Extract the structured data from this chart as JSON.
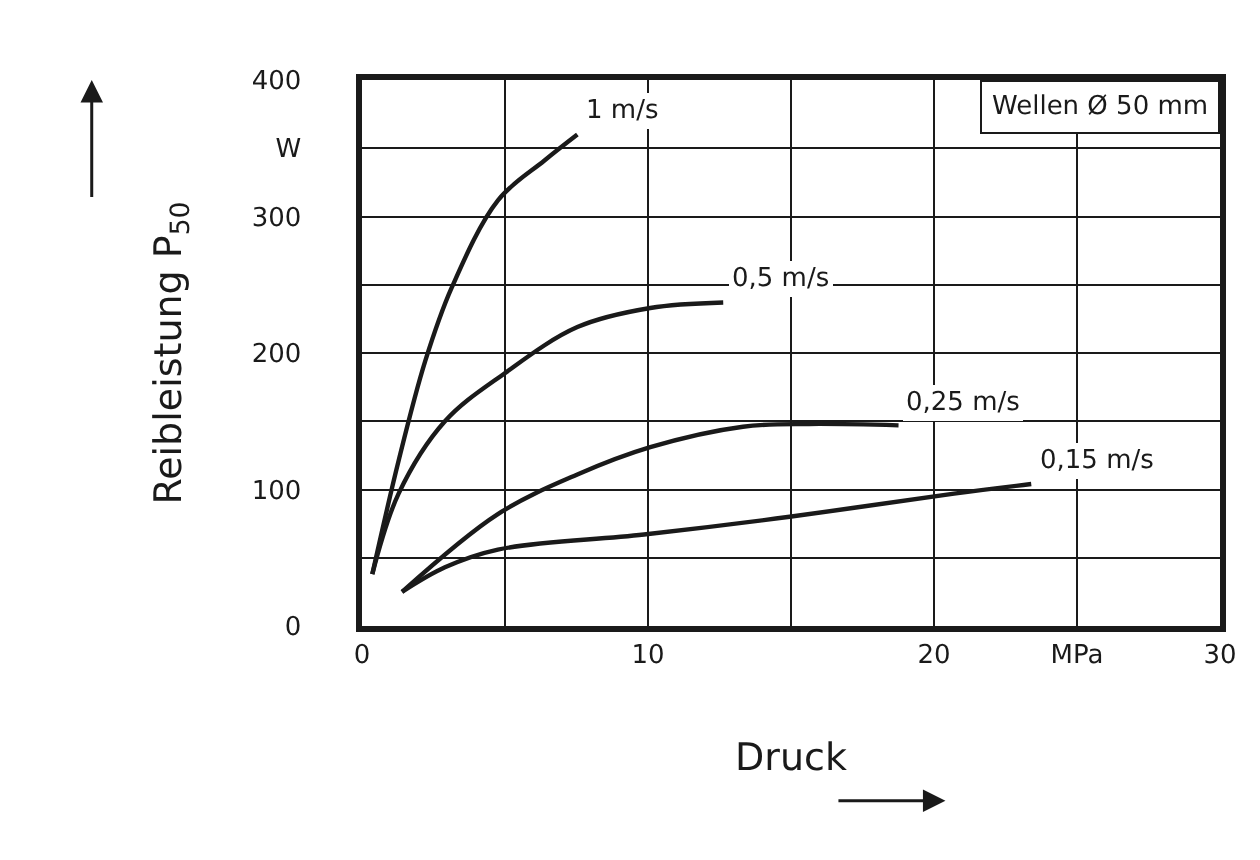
{
  "chart_data": {
    "type": "line",
    "xlabel": "Druck",
    "ylabel": "Reibleistung P$_{50}$",
    "annotations": [
      "Wellen Ø 50 mm"
    ],
    "xlim": [
      0,
      30
    ],
    "ylim": [
      0,
      400
    ],
    "xticks": [
      0,
      {
        "value": 5,
        "label": null
      },
      10,
      {
        "value": 15,
        "label": null
      },
      20,
      {
        "value": 25,
        "label": "MPa"
      },
      30
    ],
    "yticks": [
      0,
      {
        "value": 50,
        "label": null
      },
      100,
      {
        "value": 150,
        "label": null
      },
      200,
      {
        "value": 250,
        "label": null
      },
      300,
      {
        "value": 350,
        "label": "W"
      },
      400
    ],
    "grid": true,
    "legend": false,
    "marker": "none",
    "line_style": "solid",
    "series": [
      {
        "name": "1 m/s",
        "color": "#1a1a1a",
        "x": [
          0.36,
          1.28,
          2.21,
          3.14,
          4.76,
          6.38,
          7.53
        ],
        "values": [
          38,
          121,
          194,
          248,
          312,
          341,
          360
        ]
      },
      {
        "name": "0,5 m/s",
        "color": "#1a1a1a",
        "x": [
          0.36,
          1.28,
          2.9,
          4.98,
          7.53,
          10.08,
          12.63
        ],
        "values": [
          38,
          97,
          150,
          185,
          219,
          233,
          237
        ]
      },
      {
        "name": "0,25 m/s",
        "color": "#1a1a1a",
        "x": [
          1.4,
          4.75,
          7.53,
          10.08,
          13.32,
          15.63,
          18.76
        ],
        "values": [
          25,
          82,
          111,
          131,
          146,
          148,
          147
        ]
      },
      {
        "name": "0,15 m/s",
        "color": "#1a1a1a",
        "x": [
          1.4,
          2.9,
          4.75,
          9.86,
          14.95,
          20.7,
          23.4
        ],
        "values": [
          25,
          43,
          56,
          67,
          80,
          97,
          104
        ]
      }
    ]
  }
}
